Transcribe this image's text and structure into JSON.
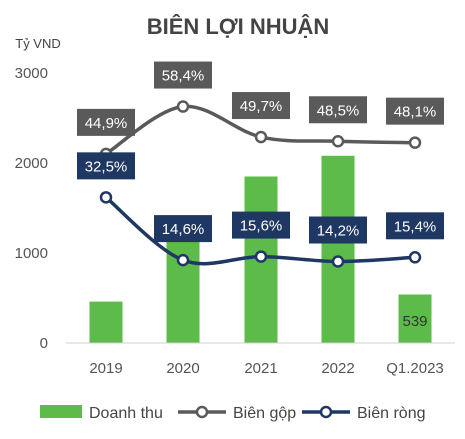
{
  "chart_data": {
    "type": "bar",
    "title": "BIÊN LỢI NHUẬN",
    "ylabel": "Tỷ VND",
    "ylim": [
      0,
      3000
    ],
    "yticks": [
      0,
      1000,
      2000,
      3000
    ],
    "categories": [
      "2019",
      "2020",
      "2021",
      "2022",
      "Q1.2023"
    ],
    "bar_series": {
      "name": "Doanh thu",
      "color": "#5DBB4A",
      "values": [
        460,
        1200,
        1850,
        2080,
        539
      ],
      "data_labels": [
        "",
        "",
        "",
        "",
        "539"
      ]
    },
    "line_series": [
      {
        "name": "Biên gộp",
        "color": "#5A5A5A",
        "label_bg": "#5A5A5A",
        "values_pct": [
          44.9,
          58.4,
          49.7,
          48.5,
          48.1
        ],
        "labels": [
          "44,9%",
          "58,4%",
          "49,7%",
          "48,5%",
          "48,1%"
        ]
      },
      {
        "name": "Biên ròng",
        "color": "#1F3763",
        "label_bg": "#1F3763",
        "values_pct": [
          32.5,
          14.6,
          15.6,
          14.2,
          15.4
        ],
        "labels": [
          "32,5%",
          "14,6%",
          "15,6%",
          "14,2%",
          "15,4%"
        ]
      }
    ],
    "legend_position": "bottom",
    "grid": false
  }
}
